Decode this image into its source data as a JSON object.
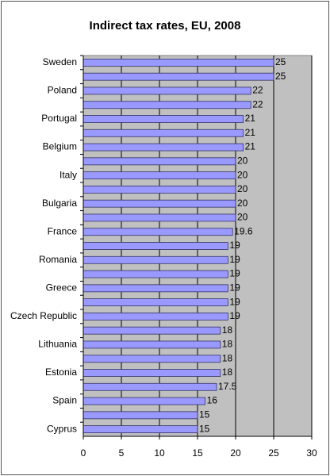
{
  "chart_data": {
    "type": "bar",
    "orientation": "horizontal",
    "title": "Indirect tax rates, EU, 2008",
    "categories": [
      "Sweden",
      null,
      "Poland",
      null,
      "Portugal",
      null,
      "Belgium",
      null,
      "Italy",
      null,
      "Bulgaria",
      null,
      "France",
      null,
      "Romania",
      null,
      "Greece",
      null,
      "Czech Republic",
      null,
      "Lithuania",
      null,
      "Estonia",
      null,
      "Spain",
      null,
      "Cyprus"
    ],
    "values": [
      25,
      25,
      22,
      22,
      21,
      21,
      21,
      20,
      20,
      20,
      20,
      20,
      19.6,
      19,
      19,
      19,
      19,
      19,
      19,
      18,
      18,
      18,
      18,
      17.5,
      16,
      15,
      15
    ],
    "color": "#9999ff",
    "xlim": [
      0,
      30
    ],
    "xticks": [
      0,
      5,
      10,
      15,
      20,
      25,
      30
    ],
    "grid": true
  }
}
